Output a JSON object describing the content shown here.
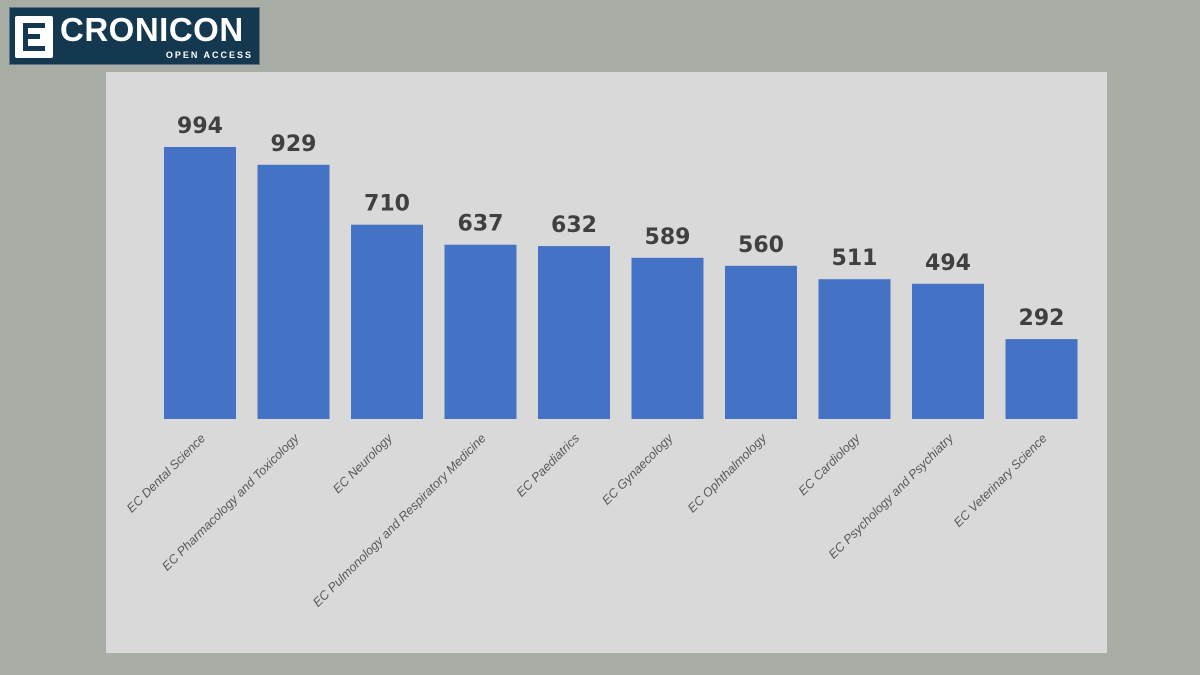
{
  "logo": {
    "name": "CRONICON",
    "tagline": "OPEN ACCESS"
  },
  "colors": {
    "background": "#a8ada5",
    "panel": "#d9d9d9",
    "bar": "#4472c4",
    "logo": "#14384f"
  },
  "chart_data": {
    "type": "bar",
    "categories": [
      "EC Dental Science",
      "EC Pharmacology and Toxicology",
      "EC Neurology",
      "EC Pulmonology and Respiratory Medicine",
      "EC Paediatrics",
      "EC Gynaecology",
      "EC Ophthalmology",
      "EC Cardiology",
      "EC Psychology and Psychiatry",
      "EC Veterinary Science"
    ],
    "values": [
      994,
      929,
      710,
      637,
      632,
      589,
      560,
      511,
      494,
      292
    ],
    "ylim": [
      0,
      1000
    ],
    "grid": false,
    "legend": "none",
    "data_labels": true
  }
}
